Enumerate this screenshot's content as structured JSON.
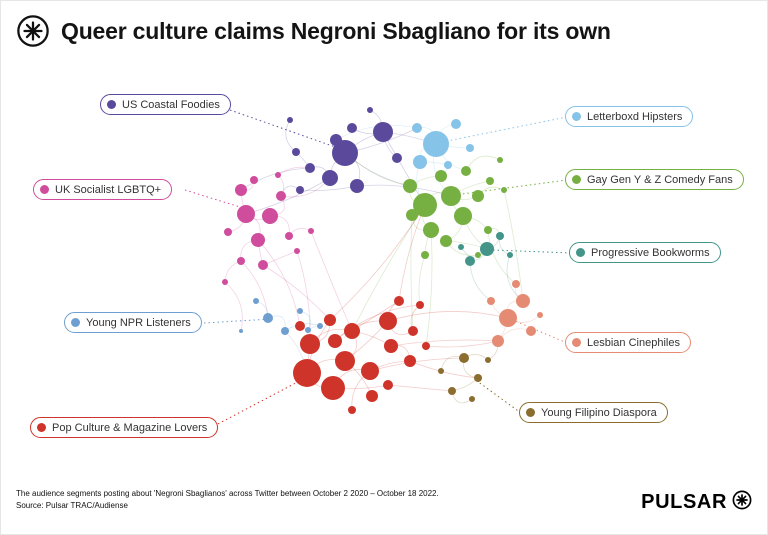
{
  "header": {
    "title": "Queer culture claims Negroni Sbagliano for its own"
  },
  "footer": {
    "caption_line1": "The audience segments posting about 'Negroni Sbaglianos' across Twitter between October 2 2020 – October 18 2022.",
    "caption_line2": "Source: Pulsar TRAC/Audiense",
    "brand": "PULSAR"
  },
  "labels": [
    {
      "text": "US Coastal Foodies",
      "cluster": 0,
      "pill": [
        100,
        94
      ],
      "line": [
        [
          230,
          110
        ],
        [
          341,
          149
        ]
      ]
    },
    {
      "text": "Letterboxd Hipsters",
      "cluster": 1,
      "pill": [
        565,
        106
      ],
      "line": [
        [
          567,
          117
        ],
        [
          447,
          141
        ]
      ]
    },
    {
      "text": "UK Socialist LGBTQ+",
      "cluster": 3,
      "pill": [
        33,
        179
      ],
      "line": [
        [
          185,
          190
        ],
        [
          240,
          207
        ]
      ]
    },
    {
      "text": "Gay Gen Y & Z Comedy Fans",
      "cluster": 2,
      "pill": [
        565,
        169
      ],
      "line": [
        [
          567,
          180
        ],
        [
          462,
          194
        ]
      ]
    },
    {
      "text": "Progressive Bookworms",
      "cluster": 4,
      "pill": [
        569,
        242
      ],
      "line": [
        [
          571,
          253
        ],
        [
          493,
          250
        ]
      ]
    },
    {
      "text": "Young NPR Listeners",
      "cluster": 5,
      "pill": [
        64,
        312
      ],
      "line": [
        [
          204,
          323
        ],
        [
          271,
          319
        ]
      ]
    },
    {
      "text": "Lesbian Cinephiles",
      "cluster": 7,
      "pill": [
        565,
        332
      ],
      "line": [
        [
          567,
          343
        ],
        [
          515,
          321
        ]
      ]
    },
    {
      "text": "Pop Culture & Magazine Lovers",
      "cluster": 6,
      "pill": [
        30,
        417
      ],
      "line": [
        [
          214,
          426
        ],
        [
          309,
          376
        ]
      ]
    },
    {
      "text": "Young Filipino Diaspora",
      "cluster": 8,
      "pill": [
        519,
        402
      ],
      "line": [
        [
          521,
          413
        ],
        [
          477,
          381
        ]
      ]
    }
  ],
  "chart_data": {
    "type": "network",
    "title": "Queer culture claims Negroni Sbagliano for its own",
    "clusters": [
      {
        "id": "us-coastal-foodies",
        "label": "US Coastal Foodies",
        "color": "#5b4a9c"
      },
      {
        "id": "letterboxd-hipsters",
        "label": "Letterboxd Hipsters",
        "color": "#85c3e8"
      },
      {
        "id": "gay-gen-y-z-comedy-fans",
        "label": "Gay Gen Y & Z Comedy Fans",
        "color": "#76b043"
      },
      {
        "id": "uk-socialist-lgbtq",
        "label": "UK Socialist LGBTQ+",
        "color": "#cf4d9c"
      },
      {
        "id": "progressive-bookworms",
        "label": "Progressive Bookworms",
        "color": "#43958a"
      },
      {
        "id": "young-npr-listeners",
        "label": "Young NPR Listeners",
        "color": "#6f9fd0"
      },
      {
        "id": "pop-culture-magazine-lovers",
        "label": "Pop Culture & Magazine Lovers",
        "color": "#cf342b"
      },
      {
        "id": "lesbian-cinephiles",
        "label": "Lesbian Cinephiles",
        "color": "#e58b74"
      },
      {
        "id": "young-filipino-diaspora",
        "label": "Young Filipino Diaspora",
        "color": "#8a6d2f"
      }
    ],
    "nodes": [
      [
        345,
        153,
        13,
        0
      ],
      [
        383,
        132,
        10,
        0
      ],
      [
        330,
        178,
        8,
        0
      ],
      [
        357,
        186,
        7,
        0
      ],
      [
        310,
        168,
        5,
        0
      ],
      [
        296,
        152,
        4,
        0
      ],
      [
        352,
        128,
        5,
        0
      ],
      [
        397,
        158,
        5,
        0
      ],
      [
        300,
        190,
        4,
        0
      ],
      [
        290,
        120,
        3,
        0
      ],
      [
        370,
        110,
        3,
        0
      ],
      [
        336,
        140,
        6,
        0
      ],
      [
        436,
        144,
        13,
        1
      ],
      [
        420,
        162,
        7,
        1
      ],
      [
        456,
        124,
        5,
        1
      ],
      [
        470,
        148,
        4,
        1
      ],
      [
        417,
        128,
        5,
        1
      ],
      [
        448,
        165,
        4,
        1
      ],
      [
        425,
        205,
        12,
        2
      ],
      [
        451,
        196,
        10,
        2
      ],
      [
        463,
        216,
        9,
        2
      ],
      [
        431,
        230,
        8,
        2
      ],
      [
        410,
        186,
        7,
        2
      ],
      [
        478,
        196,
        6,
        2
      ],
      [
        446,
        241,
        6,
        2
      ],
      [
        490,
        181,
        4,
        2
      ],
      [
        412,
        215,
        6,
        2
      ],
      [
        466,
        171,
        5,
        2
      ],
      [
        504,
        190,
        3,
        2
      ],
      [
        441,
        176,
        6,
        2
      ],
      [
        488,
        230,
        4,
        2
      ],
      [
        500,
        160,
        3,
        2
      ],
      [
        478,
        255,
        3,
        2
      ],
      [
        425,
        255,
        4,
        2
      ],
      [
        246,
        214,
        9,
        3
      ],
      [
        270,
        216,
        8,
        3
      ],
      [
        258,
        240,
        7,
        3
      ],
      [
        241,
        190,
        6,
        3
      ],
      [
        281,
        196,
        5,
        3
      ],
      [
        263,
        265,
        5,
        3
      ],
      [
        241,
        261,
        4,
        3
      ],
      [
        289,
        236,
        4,
        3
      ],
      [
        254,
        180,
        4,
        3
      ],
      [
        297,
        251,
        3,
        3
      ],
      [
        311,
        231,
        3,
        3
      ],
      [
        228,
        232,
        4,
        3
      ],
      [
        225,
        282,
        3,
        3
      ],
      [
        278,
        175,
        3,
        3
      ],
      [
        487,
        249,
        7,
        4
      ],
      [
        470,
        261,
        5,
        4
      ],
      [
        500,
        236,
        4,
        4
      ],
      [
        461,
        247,
        3,
        4
      ],
      [
        510,
        255,
        3,
        4
      ],
      [
        268,
        318,
        5,
        5
      ],
      [
        285,
        331,
        4,
        5
      ],
      [
        300,
        311,
        3,
        5
      ],
      [
        256,
        301,
        3,
        5
      ],
      [
        320,
        326,
        3,
        5
      ],
      [
        241,
        331,
        2,
        5
      ],
      [
        308,
        330,
        3,
        5
      ],
      [
        307,
        373,
        14,
        6
      ],
      [
        333,
        388,
        12,
        6
      ],
      [
        345,
        361,
        10,
        6
      ],
      [
        310,
        344,
        10,
        6
      ],
      [
        370,
        371,
        9,
        6
      ],
      [
        388,
        321,
        9,
        6
      ],
      [
        352,
        331,
        8,
        6
      ],
      [
        335,
        341,
        7,
        6
      ],
      [
        391,
        346,
        7,
        6
      ],
      [
        410,
        361,
        6,
        6
      ],
      [
        372,
        396,
        6,
        6
      ],
      [
        330,
        320,
        6,
        6
      ],
      [
        300,
        326,
        5,
        6
      ],
      [
        413,
        331,
        5,
        6
      ],
      [
        399,
        301,
        5,
        6
      ],
      [
        426,
        346,
        4,
        6
      ],
      [
        352,
        410,
        4,
        6
      ],
      [
        388,
        385,
        5,
        6
      ],
      [
        420,
        305,
        4,
        6
      ],
      [
        508,
        318,
        9,
        7
      ],
      [
        523,
        301,
        7,
        7
      ],
      [
        498,
        341,
        6,
        7
      ],
      [
        531,
        331,
        5,
        7
      ],
      [
        516,
        284,
        4,
        7
      ],
      [
        491,
        301,
        4,
        7
      ],
      [
        540,
        315,
        3,
        7
      ],
      [
        464,
        358,
        5,
        8
      ],
      [
        478,
        378,
        4,
        8
      ],
      [
        452,
        391,
        4,
        8
      ],
      [
        472,
        399,
        3,
        8
      ],
      [
        441,
        371,
        3,
        8
      ],
      [
        488,
        360,
        3,
        8
      ]
    ],
    "edges": [
      [
        0,
        1
      ],
      [
        0,
        2
      ],
      [
        0,
        3
      ],
      [
        1,
        6
      ],
      [
        2,
        4
      ],
      [
        0,
        11
      ],
      [
        1,
        7
      ],
      [
        3,
        8
      ],
      [
        4,
        5
      ],
      [
        1,
        10
      ],
      [
        5,
        9
      ],
      [
        0,
        22
      ],
      [
        1,
        18
      ],
      [
        3,
        19
      ],
      [
        1,
        12
      ],
      [
        0,
        16
      ],
      [
        2,
        34
      ],
      [
        4,
        37
      ],
      [
        8,
        38
      ],
      [
        12,
        13
      ],
      [
        12,
        14
      ],
      [
        12,
        16
      ],
      [
        13,
        17
      ],
      [
        12,
        15
      ],
      [
        12,
        19
      ],
      [
        13,
        18
      ],
      [
        12,
        27
      ],
      [
        17,
        29
      ],
      [
        18,
        19
      ],
      [
        19,
        20
      ],
      [
        18,
        21
      ],
      [
        18,
        22
      ],
      [
        19,
        23
      ],
      [
        20,
        24
      ],
      [
        21,
        26
      ],
      [
        22,
        29
      ],
      [
        18,
        26
      ],
      [
        20,
        30
      ],
      [
        19,
        25
      ],
      [
        23,
        28
      ],
      [
        24,
        32
      ],
      [
        21,
        33
      ],
      [
        27,
        31
      ],
      [
        20,
        48
      ],
      [
        24,
        48
      ],
      [
        30,
        50
      ],
      [
        21,
        75
      ],
      [
        18,
        66
      ],
      [
        26,
        73
      ],
      [
        33,
        78
      ],
      [
        28,
        80
      ],
      [
        30,
        83
      ],
      [
        34,
        35
      ],
      [
        34,
        36
      ],
      [
        34,
        37
      ],
      [
        35,
        38
      ],
      [
        36,
        39
      ],
      [
        36,
        40
      ],
      [
        35,
        41
      ],
      [
        37,
        42
      ],
      [
        34,
        45
      ],
      [
        39,
        43
      ],
      [
        41,
        44
      ],
      [
        40,
        46
      ],
      [
        38,
        47
      ],
      [
        38,
        2
      ],
      [
        36,
        72
      ],
      [
        39,
        71
      ],
      [
        43,
        63
      ],
      [
        40,
        53
      ],
      [
        46,
        58
      ],
      [
        48,
        49
      ],
      [
        48,
        50
      ],
      [
        48,
        51
      ],
      [
        50,
        52
      ],
      [
        52,
        80
      ],
      [
        49,
        84
      ],
      [
        53,
        54
      ],
      [
        53,
        56
      ],
      [
        54,
        57
      ],
      [
        55,
        59
      ],
      [
        54,
        60
      ],
      [
        57,
        63
      ],
      [
        59,
        72
      ],
      [
        60,
        61
      ],
      [
        60,
        62
      ],
      [
        60,
        63
      ],
      [
        61,
        64
      ],
      [
        62,
        65
      ],
      [
        63,
        66
      ],
      [
        64,
        69
      ],
      [
        65,
        67
      ],
      [
        66,
        68
      ],
      [
        62,
        70
      ],
      [
        61,
        77
      ],
      [
        65,
        73
      ],
      [
        66,
        74
      ],
      [
        60,
        71
      ],
      [
        63,
        71
      ],
      [
        67,
        78
      ],
      [
        64,
        76
      ],
      [
        68,
        69
      ],
      [
        62,
        66
      ],
      [
        65,
        74
      ],
      [
        73,
        78
      ],
      [
        65,
        79
      ],
      [
        68,
        81
      ],
      [
        75,
        81
      ],
      [
        64,
        86
      ],
      [
        69,
        87
      ],
      [
        77,
        88
      ],
      [
        74,
        18
      ],
      [
        71,
        18
      ],
      [
        79,
        80
      ],
      [
        79,
        81
      ],
      [
        80,
        83
      ],
      [
        81,
        82
      ],
      [
        79,
        85
      ],
      [
        84,
        79
      ],
      [
        86,
        87
      ],
      [
        87,
        88
      ],
      [
        86,
        90
      ],
      [
        88,
        89
      ],
      [
        86,
        91
      ],
      [
        91,
        81
      ],
      [
        16,
        11
      ],
      [
        22,
        11
      ],
      [
        44,
        66
      ],
      [
        47,
        4
      ]
    ]
  }
}
